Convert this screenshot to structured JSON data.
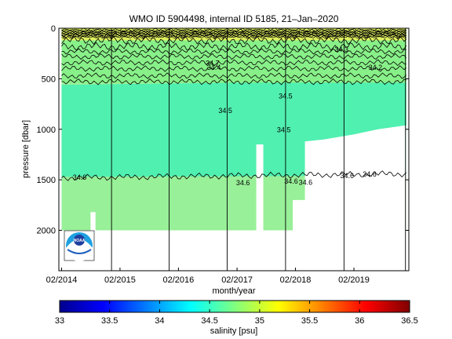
{
  "chart_data": {
    "type": "heatmap",
    "title": "WMO ID 5904498, internal ID 5185, 21–Jan–2020",
    "xlabel": "month/year",
    "ylabel": "pressure [dbar]",
    "x_ticks": [
      "02/2014",
      "02/2015",
      "02/2016",
      "02/2017",
      "02/2018",
      "02/2019"
    ],
    "y_ticks": [
      0,
      500,
      1000,
      1500,
      2000
    ],
    "ylim": [
      2400,
      0
    ],
    "xlim": [
      "2014-01-15",
      "2020-01-10"
    ],
    "profile_breaks": [
      "2014-12-10",
      "2015-12-05",
      "2016-12-01",
      "2017-12-01",
      "2018-12-01",
      "2019-12-20"
    ],
    "isohaline_labels": [
      {
        "value": "34.7",
        "date": "2016-09-01",
        "pressure": 345
      },
      {
        "value": "34.4",
        "date": "2016-09-10",
        "pressure": 390
      },
      {
        "value": "34.5",
        "date": "2017-11-20",
        "pressure": 1005
      },
      {
        "value": "34.5",
        "date": "2016-11-20",
        "pressure": 815
      },
      {
        "value": "34.5",
        "date": "2017-12-01",
        "pressure": 670
      },
      {
        "value": "34.6",
        "date": "2014-05-25",
        "pressure": 1475
      },
      {
        "value": "34.6",
        "date": "2017-03-10",
        "pressure": 1530
      },
      {
        "value": "34.6",
        "date": "2018-01-05",
        "pressure": 1515
      },
      {
        "value": "34.6",
        "date": "2018-04-05",
        "pressure": 1525
      },
      {
        "value": "34.6",
        "date": "2018-12-20",
        "pressure": 1460
      },
      {
        "value": "34.6",
        "date": "2019-05-10",
        "pressure": 1445
      },
      {
        "value": "34.2",
        "date": "2019-06-15",
        "pressure": 390
      },
      {
        "value": "34.3",
        "date": "2018-11-15",
        "pressure": 210
      }
    ],
    "colorbar": {
      "label": "salinity [psu]",
      "ticks": [
        33,
        33.5,
        34,
        34.5,
        35,
        35.5,
        36,
        36.5
      ],
      "range": [
        33,
        36.5
      ],
      "colormap": "jet"
    },
    "field_colors": {
      "deep": "#98f098",
      "intermediate": "#50f0b0",
      "upper": "#88f088",
      "surface": "#e0f060"
    },
    "logo": "noaa-logo"
  }
}
